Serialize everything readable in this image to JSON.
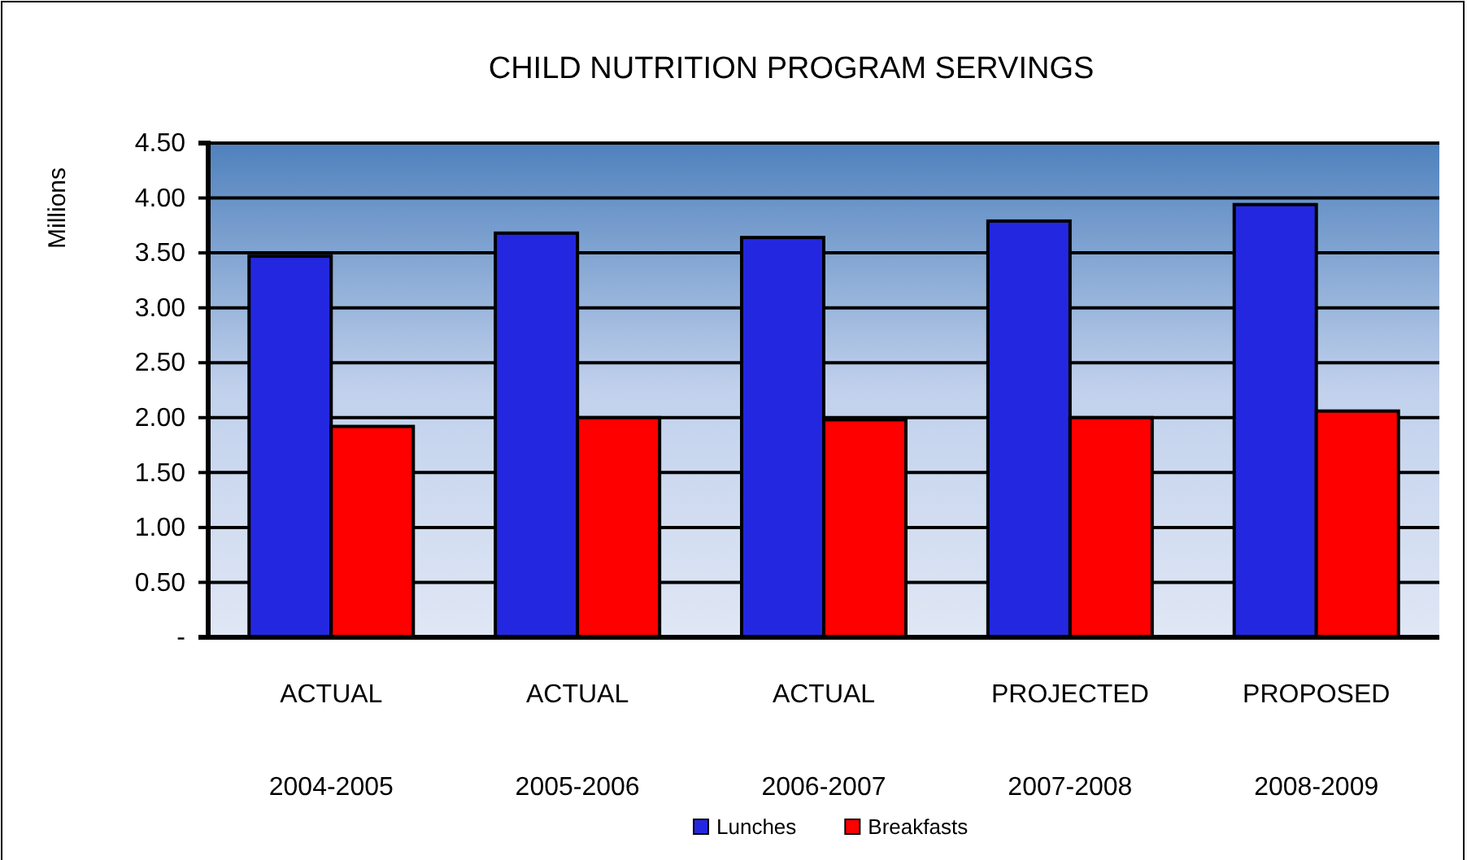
{
  "chart_data": {
    "type": "bar",
    "title": "CHILD NUTRITION PROGRAM SERVINGS",
    "ylabel": "Millions",
    "categories": [
      "ACTUAL\n2004-2005",
      "ACTUAL\n2005-2006",
      "ACTUAL\n2006-2007",
      "PROJECTED\n2007-2008",
      "PROPOSED\n2008-2009"
    ],
    "series": [
      {
        "name": "Lunches",
        "color": "#2328e0",
        "values": [
          3.47,
          3.68,
          3.64,
          3.79,
          3.94
        ]
      },
      {
        "name": "Breakfasts",
        "color": "#ff0000",
        "values": [
          1.92,
          2.0,
          1.98,
          2.0,
          2.06
        ]
      }
    ],
    "ylim": [
      0,
      4.5
    ],
    "yticks": [
      {
        "value": 0,
        "label": "-"
      },
      {
        "value": 0.5,
        "label": "0.50"
      },
      {
        "value": 1,
        "label": "1.00"
      },
      {
        "value": 1.5,
        "label": "1.50"
      },
      {
        "value": 2,
        "label": "2.00"
      },
      {
        "value": 2.5,
        "label": "2.50"
      },
      {
        "value": 3,
        "label": "3.00"
      },
      {
        "value": 3.5,
        "label": "3.50"
      },
      {
        "value": 4,
        "label": "4.00"
      },
      {
        "value": 4.5,
        "label": "4.50"
      }
    ],
    "grid": "y",
    "legend": "bottom"
  }
}
